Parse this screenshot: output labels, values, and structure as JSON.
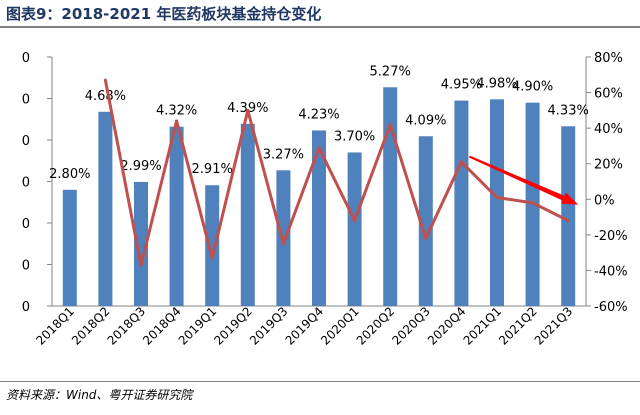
{
  "header": {
    "title": "图表9：2018-2021 年医药板块基金持仓变化"
  },
  "footer": {
    "source": "资料来源：Wind、粤开证券研究院"
  },
  "chart_data": {
    "type": "bar",
    "categories": [
      "2018Q1",
      "2018Q2",
      "2018Q3",
      "2018Q4",
      "2019Q1",
      "2019Q2",
      "2019Q3",
      "2019Q4",
      "2020Q1",
      "2020Q2",
      "2020Q3",
      "2020Q4",
      "2021Q1",
      "2021Q2",
      "2021Q3"
    ],
    "series": [
      {
        "kind": "bar",
        "axis": "left",
        "color": "#4f81bd",
        "values": [
          2.8,
          4.68,
          2.99,
          4.32,
          2.91,
          4.39,
          3.27,
          4.23,
          3.7,
          5.27,
          4.09,
          4.95,
          4.98,
          4.9,
          4.33
        ],
        "labels": [
          "2.80%",
          "4.68%",
          "2.99%",
          "4.32%",
          "2.91%",
          "4.39%",
          "3.27%",
          "4.23%",
          "3.70%",
          "5.27%",
          "4.09%",
          "4.95%",
          "4.98%",
          "4.90%",
          "4.33%"
        ]
      },
      {
        "kind": "line",
        "axis": "right",
        "color": "#c0504d",
        "values": [
          null,
          67,
          -37,
          44,
          -33,
          50,
          -25,
          29,
          -12,
          42,
          -22,
          21,
          1,
          -2,
          -12
        ]
      }
    ],
    "left_axis": {
      "ylim": [
        0,
        6
      ],
      "tick_labels": [
        "0",
        "0",
        "0",
        "0",
        "0",
        "0",
        "0"
      ]
    },
    "right_axis": {
      "ylim": [
        -60,
        80
      ],
      "ticks": [
        -60,
        -40,
        -20,
        0,
        20,
        40,
        60,
        80
      ],
      "tick_labels": [
        "-60%",
        "-40%",
        "-20%",
        "0%",
        "20%",
        "40%",
        "60%",
        "80%"
      ]
    },
    "annotation": {
      "type": "arrow",
      "color": "#ff0000",
      "from": {
        "category": "2020Q4",
        "value": 24
      },
      "to": {
        "category": "2021Q3",
        "value": -3
      }
    },
    "grid": false
  }
}
